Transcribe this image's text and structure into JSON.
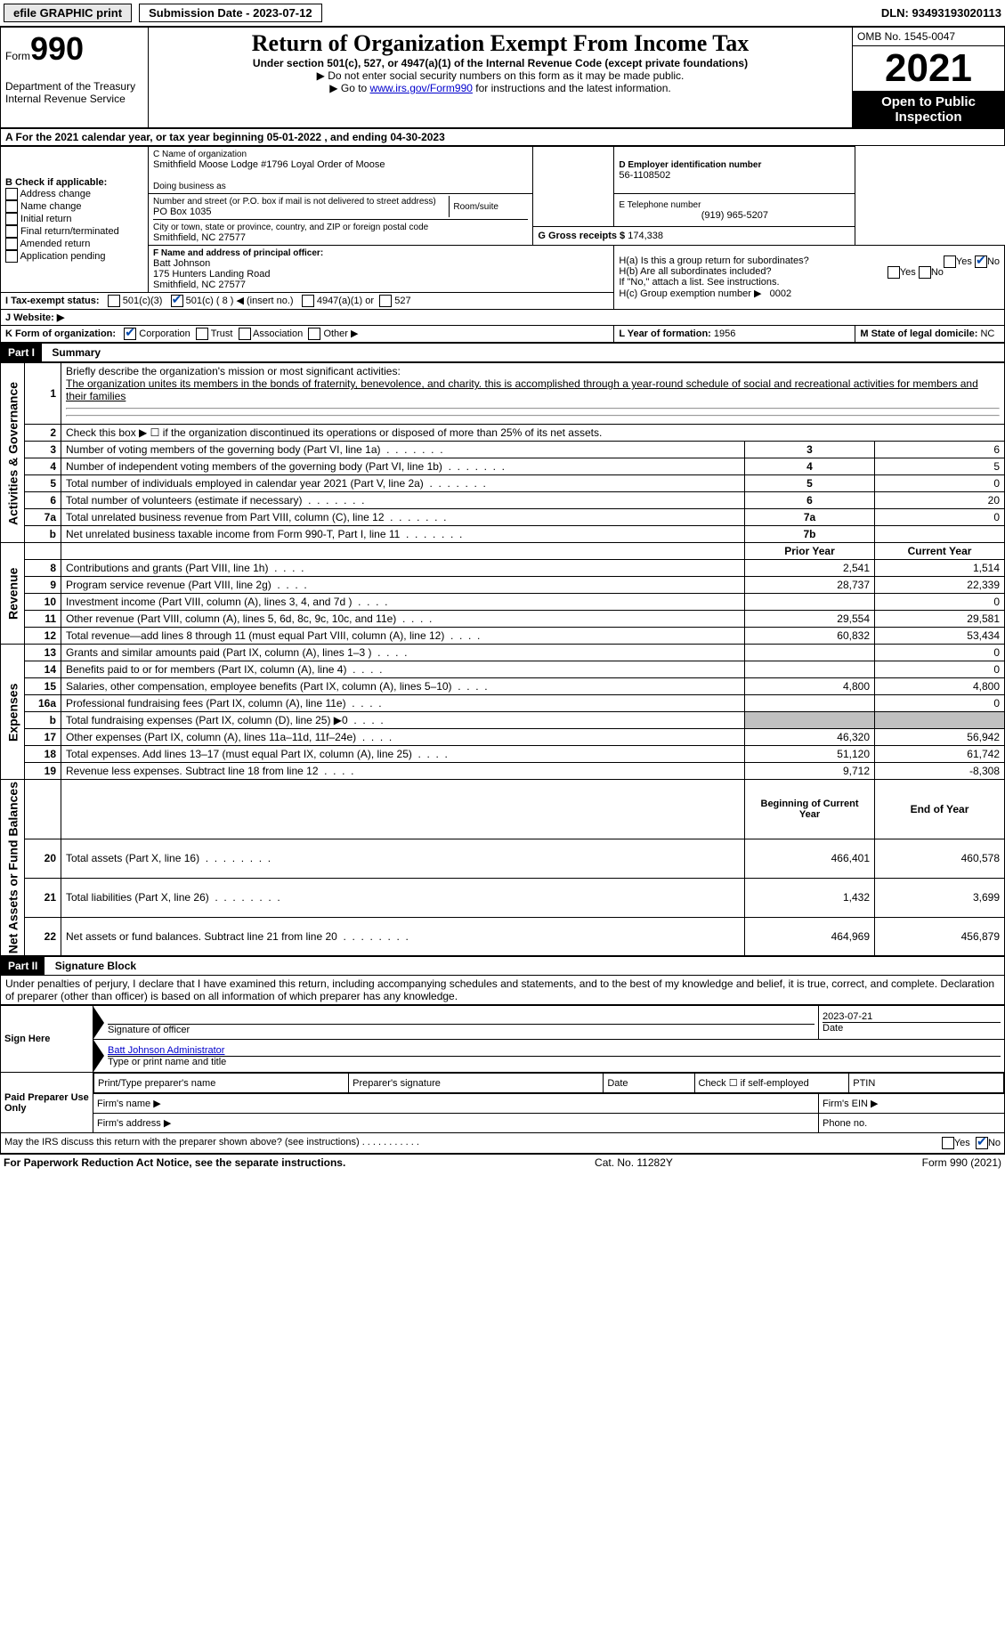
{
  "topBar": {
    "efile": "efile GRAPHIC print",
    "submission": "Submission Date - 2023-07-12",
    "dln": "DLN: 93493193020113"
  },
  "header": {
    "formWord": "Form",
    "formNum": "990",
    "dept": "Department of the Treasury",
    "irs": "Internal Revenue Service",
    "title": "Return of Organization Exempt From Income Tax",
    "subtitle": "Under section 501(c), 527, or 4947(a)(1) of the Internal Revenue Code (except private foundations)",
    "line1": "▶ Do not enter social security numbers on this form as it may be made public.",
    "line2pre": "▶ Go to ",
    "line2link": "www.irs.gov/Form990",
    "line2post": " for instructions and the latest information.",
    "omb": "OMB No. 1545-0047",
    "year": "2021",
    "inspect": "Open to Public Inspection"
  },
  "rowA": {
    "text": "A For the 2021 calendar year, or tax year beginning 05-01-2022   , and ending 04-30-2023"
  },
  "sectionB": {
    "label": "B Check if applicable:",
    "items": [
      "Address change",
      "Name change",
      "Initial return",
      "Final return/terminated",
      "Amended return",
      "Application pending"
    ]
  },
  "sectionC": {
    "nameLabel": "C Name of organization",
    "name": "Smithfield Moose Lodge #1796 Loyal Order of Moose",
    "dba": "Doing business as",
    "streetLabel": "Number and street (or P.O. box if mail is not delivered to street address)",
    "room": "Room/suite",
    "street": "PO Box 1035",
    "cityLabel": "City or town, state or province, country, and ZIP or foreign postal code",
    "city": "Smithfield, NC  27577"
  },
  "sectionD": {
    "label": "D Employer identification number",
    "value": "56-1108502"
  },
  "sectionE": {
    "label": "E Telephone number",
    "value": "(919) 965-5207"
  },
  "sectionG": {
    "label": "G Gross receipts $",
    "value": "174,338"
  },
  "sectionF": {
    "label": "F  Name and address of principal officer:",
    "name": "Batt Johnson",
    "addr1": "175 Hunters Landing Road",
    "addr2": "Smithfield, NC  27577"
  },
  "sectionH": {
    "a": "H(a)  Is this a group return for subordinates?",
    "b": "H(b)  Are all subordinates included?",
    "note": "If \"No,\" attach a list. See instructions.",
    "c": "H(c)  Group exemption number ▶",
    "cval": "0002",
    "yes": "Yes",
    "no": "No"
  },
  "sectionI": {
    "label": "I   Tax-exempt status:",
    "opt1": "501(c)(3)",
    "opt2": "501(c) ( 8 ) ◀ (insert no.)",
    "opt3": "4947(a)(1) or",
    "opt4": "527"
  },
  "sectionJ": {
    "label": "J   Website: ▶"
  },
  "sectionK": {
    "label": "K Form of organization:",
    "corp": "Corporation",
    "trust": "Trust",
    "assoc": "Association",
    "other": "Other ▶"
  },
  "sectionL": {
    "label": "L Year of formation:",
    "value": "1956"
  },
  "sectionM": {
    "label": "M State of legal domicile:",
    "value": "NC"
  },
  "part1": {
    "header": "Part I",
    "title": "Summary",
    "vert1": "Activities & Governance",
    "vert2": "Revenue",
    "vert3": "Expenses",
    "vert4": "Net Assets or Fund Balances",
    "line1label": "Briefly describe the organization's mission or most significant activities:",
    "line1text": "The organization unites its members in the bonds of fraternity, benevolence, and charity. this is accomplished through a year-round schedule of social and recreational activities for members and their families",
    "line2": "Check this box ▶ ☐  if the organization discontinued its operations or disposed of more than 25% of its net assets.",
    "rows": [
      {
        "n": "3",
        "t": "Number of voting members of the governing body (Part VI, line 1a)",
        "rn": "3",
        "v": "6"
      },
      {
        "n": "4",
        "t": "Number of independent voting members of the governing body (Part VI, line 1b)",
        "rn": "4",
        "v": "5"
      },
      {
        "n": "5",
        "t": "Total number of individuals employed in calendar year 2021 (Part V, line 2a)",
        "rn": "5",
        "v": "0"
      },
      {
        "n": "6",
        "t": "Total number of volunteers (estimate if necessary)",
        "rn": "6",
        "v": "20"
      },
      {
        "n": "7a",
        "t": "Total unrelated business revenue from Part VIII, column (C), line 12",
        "rn": "7a",
        "v": "0"
      },
      {
        "n": "b",
        "t": "Net unrelated business taxable income from Form 990-T, Part I, line 11",
        "rn": "7b",
        "v": ""
      }
    ],
    "prior": "Prior Year",
    "current": "Current Year",
    "revRows": [
      {
        "n": "8",
        "t": "Contributions and grants (Part VIII, line 1h)",
        "p": "2,541",
        "c": "1,514"
      },
      {
        "n": "9",
        "t": "Program service revenue (Part VIII, line 2g)",
        "p": "28,737",
        "c": "22,339"
      },
      {
        "n": "10",
        "t": "Investment income (Part VIII, column (A), lines 3, 4, and 7d )",
        "p": "",
        "c": "0"
      },
      {
        "n": "11",
        "t": "Other revenue (Part VIII, column (A), lines 5, 6d, 8c, 9c, 10c, and 11e)",
        "p": "29,554",
        "c": "29,581"
      },
      {
        "n": "12",
        "t": "Total revenue—add lines 8 through 11 (must equal Part VIII, column (A), line 12)",
        "p": "60,832",
        "c": "53,434"
      }
    ],
    "expRows": [
      {
        "n": "13",
        "t": "Grants and similar amounts paid (Part IX, column (A), lines 1–3 )",
        "p": "",
        "c": "0"
      },
      {
        "n": "14",
        "t": "Benefits paid to or for members (Part IX, column (A), line 4)",
        "p": "",
        "c": "0"
      },
      {
        "n": "15",
        "t": "Salaries, other compensation, employee benefits (Part IX, column (A), lines 5–10)",
        "p": "4,800",
        "c": "4,800"
      },
      {
        "n": "16a",
        "t": "Professional fundraising fees (Part IX, column (A), line 11e)",
        "p": "",
        "c": "0"
      },
      {
        "n": "b",
        "t": "Total fundraising expenses (Part IX, column (D), line 25) ▶0",
        "p": "GRAY",
        "c": "GRAY"
      },
      {
        "n": "17",
        "t": "Other expenses (Part IX, column (A), lines 11a–11d, 11f–24e)",
        "p": "46,320",
        "c": "56,942"
      },
      {
        "n": "18",
        "t": "Total expenses. Add lines 13–17 (must equal Part IX, column (A), line 25)",
        "p": "51,120",
        "c": "61,742"
      },
      {
        "n": "19",
        "t": "Revenue less expenses. Subtract line 18 from line 12",
        "p": "9,712",
        "c": "-8,308"
      }
    ],
    "begin": "Beginning of Current Year",
    "end": "End of Year",
    "netRows": [
      {
        "n": "20",
        "t": "Total assets (Part X, line 16)",
        "p": "466,401",
        "c": "460,578"
      },
      {
        "n": "21",
        "t": "Total liabilities (Part X, line 26)",
        "p": "1,432",
        "c": "3,699"
      },
      {
        "n": "22",
        "t": "Net assets or fund balances. Subtract line 21 from line 20",
        "p": "464,969",
        "c": "456,879"
      }
    ]
  },
  "part2": {
    "header": "Part II",
    "title": "Signature Block",
    "decl": "Under penalties of perjury, I declare that I have examined this return, including accompanying schedules and statements, and to the best of my knowledge and belief, it is true, correct, and complete. Declaration of preparer (other than officer) is based on all information of which preparer has any knowledge.",
    "signHere": "Sign Here",
    "sigOfficer": "Signature of officer",
    "sigDate": "2023-07-21",
    "dateLabel": "Date",
    "name": "Batt Johnson  Administrator",
    "nameLabel": "Type or print name and title",
    "paid": "Paid Preparer Use Only",
    "prepName": "Print/Type preparer's name",
    "prepSig": "Preparer's signature",
    "check": "Check ☐ if self-employed",
    "ptin": "PTIN",
    "firmName": "Firm's name    ▶",
    "firmAddr": "Firm's address ▶",
    "firmEin": "Firm's EIN ▶",
    "phone": "Phone no.",
    "may": "May the IRS discuss this return with the preparer shown above? (see instructions)",
    "yes": "Yes",
    "no": "No"
  },
  "footer": {
    "left": "For Paperwork Reduction Act Notice, see the separate instructions.",
    "mid": "Cat. No. 11282Y",
    "right": "Form 990 (2021)"
  }
}
